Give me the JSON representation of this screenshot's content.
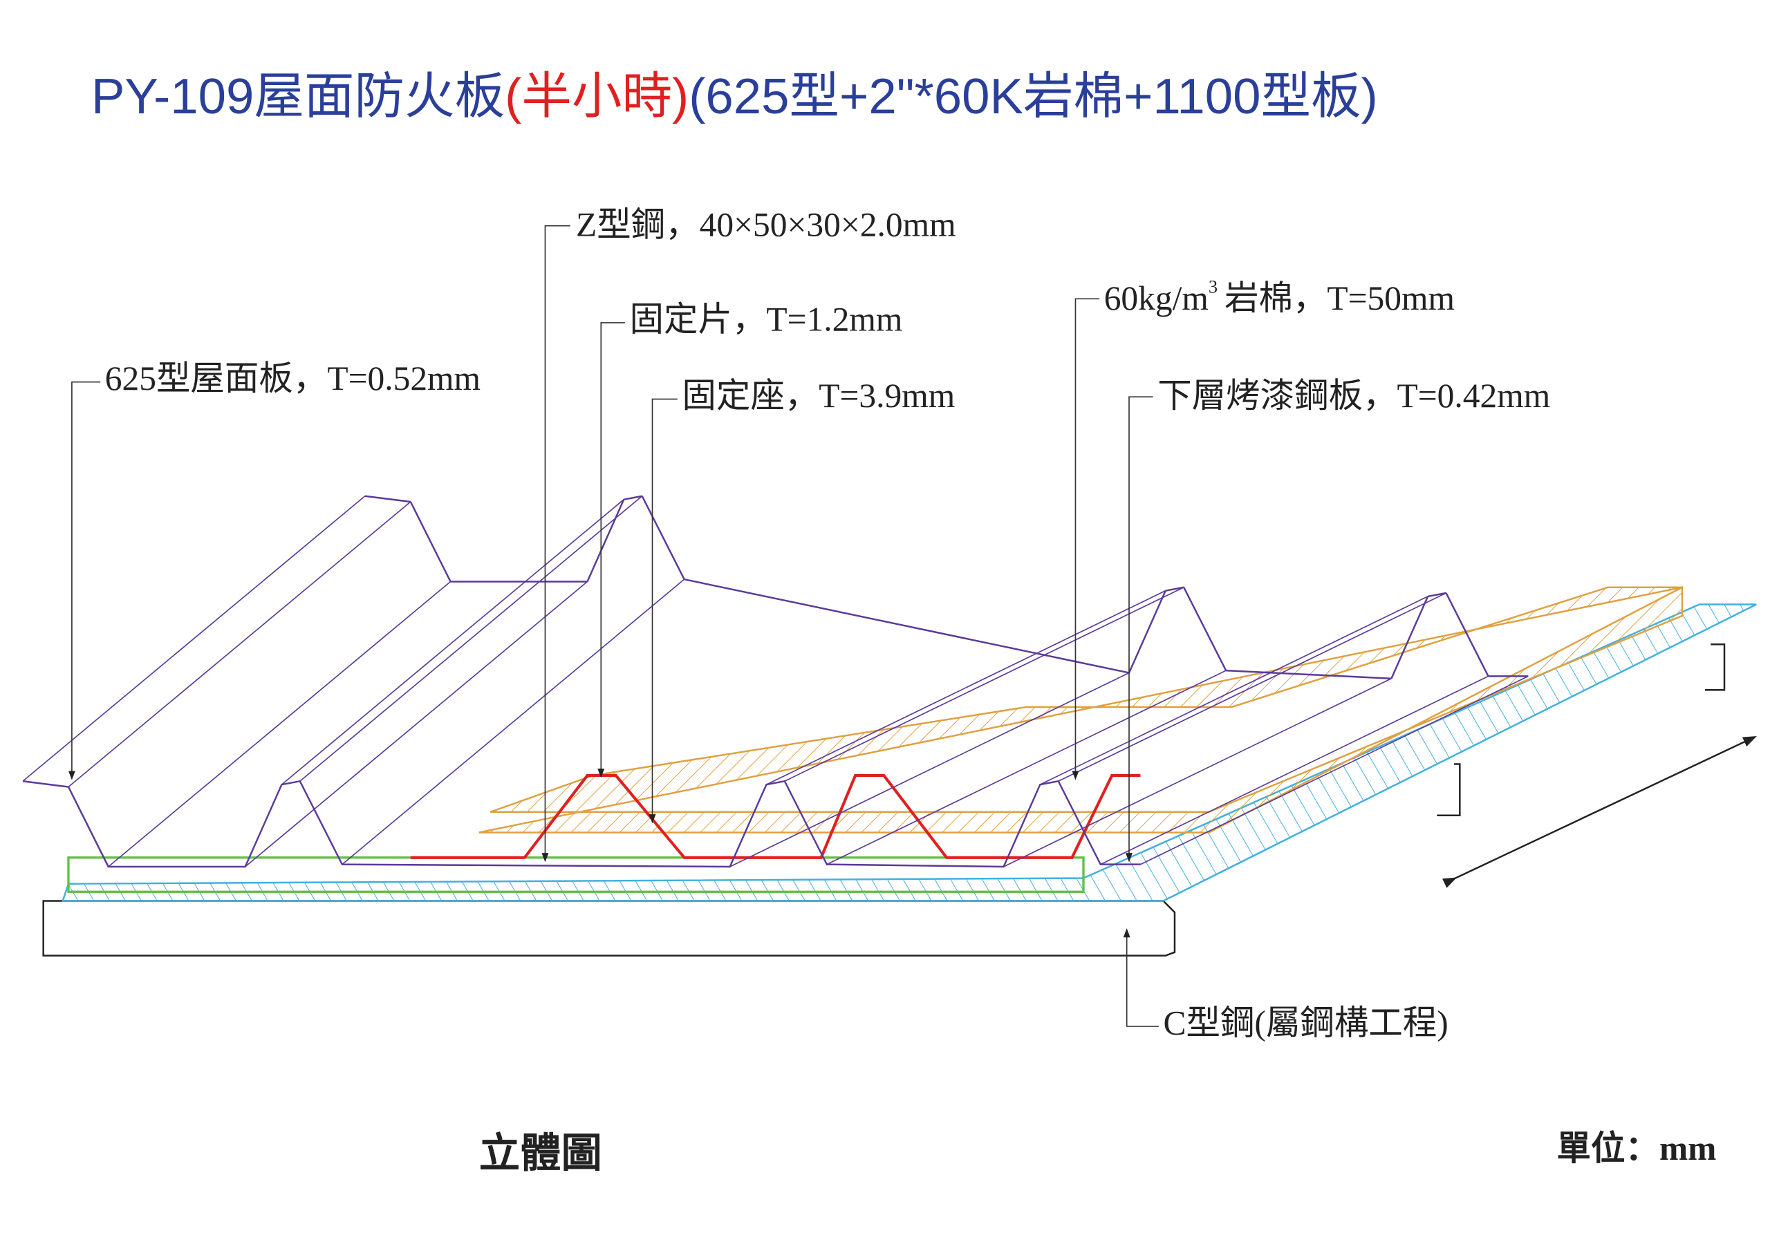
{
  "title": {
    "prefix": "PY-109屋面防火板",
    "highlight": "(半小時)",
    "suffix": "(625型+2\"*60K岩棉+1100型板)"
  },
  "labels": {
    "z_steel": "Z型鋼，40×50×30×2.0mm",
    "clip": "固定片，T=1.2mm",
    "bracket": "固定座，T=3.9mm",
    "roof_panel": "625型屋面板，T=0.52mm",
    "rockwool_pre": "60kg/m",
    "rockwool_sup": "3",
    "rockwool_post": "岩棉，T=50mm",
    "lower_sheet": "下層烤漆鋼板，T=0.42mm",
    "c_steel": "C型鋼(屬鋼構工程)"
  },
  "footer": {
    "view": "立體圖",
    "unit": "單位：mm"
  }
}
